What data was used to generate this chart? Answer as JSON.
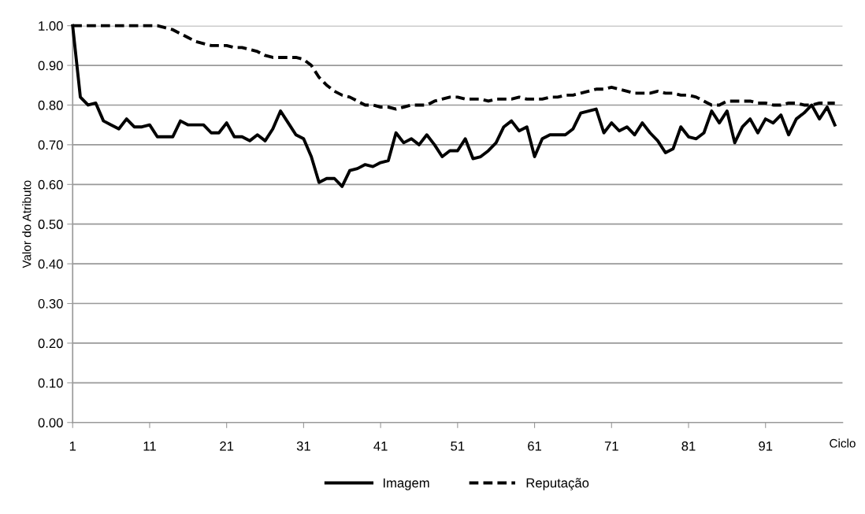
{
  "chart_data": {
    "type": "line",
    "xlabel": "Ciclo",
    "ylabel": "Valor do Atributo",
    "x": [
      1,
      2,
      3,
      4,
      5,
      6,
      7,
      8,
      9,
      10,
      11,
      12,
      13,
      14,
      15,
      16,
      17,
      18,
      19,
      20,
      21,
      22,
      23,
      24,
      25,
      26,
      27,
      28,
      29,
      30,
      31,
      32,
      33,
      34,
      35,
      36,
      37,
      38,
      39,
      40,
      41,
      42,
      43,
      44,
      45,
      46,
      47,
      48,
      49,
      50,
      51,
      52,
      53,
      54,
      55,
      56,
      57,
      58,
      59,
      60,
      61,
      62,
      63,
      64,
      65,
      66,
      67,
      68,
      69,
      70,
      71,
      72,
      73,
      74,
      75,
      76,
      77,
      78,
      79,
      80,
      81,
      82,
      83,
      84,
      85,
      86,
      87,
      88,
      89,
      90,
      91,
      92,
      93,
      94,
      95,
      96,
      97,
      98,
      99,
      100
    ],
    "series": [
      {
        "name": "Imagem",
        "color": "#000000",
        "line_style": "solid",
        "values": [
          1.0,
          0.82,
          0.8,
          0.805,
          0.76,
          0.75,
          0.74,
          0.765,
          0.745,
          0.745,
          0.75,
          0.72,
          0.72,
          0.72,
          0.76,
          0.75,
          0.75,
          0.75,
          0.73,
          0.73,
          0.755,
          0.72,
          0.72,
          0.71,
          0.725,
          0.71,
          0.74,
          0.785,
          0.755,
          0.725,
          0.715,
          0.67,
          0.605,
          0.615,
          0.615,
          0.595,
          0.635,
          0.64,
          0.65,
          0.645,
          0.655,
          0.66,
          0.73,
          0.705,
          0.715,
          0.7,
          0.725,
          0.7,
          0.67,
          0.685,
          0.685,
          0.715,
          0.665,
          0.67,
          0.685,
          0.705,
          0.745,
          0.76,
          0.735,
          0.745,
          0.67,
          0.715,
          0.725,
          0.725,
          0.725,
          0.74,
          0.78,
          0.785,
          0.79,
          0.73,
          0.755,
          0.735,
          0.745,
          0.725,
          0.755,
          0.73,
          0.71,
          0.68,
          0.69,
          0.745,
          0.72,
          0.715,
          0.73,
          0.785,
          0.755,
          0.785,
          0.705,
          0.745,
          0.765,
          0.73,
          0.765,
          0.755,
          0.775,
          0.725,
          0.765,
          0.78,
          0.8,
          0.765,
          0.795,
          0.75
        ]
      },
      {
        "name": "Reputação",
        "color": "#000000",
        "line_style": "dashed",
        "values": [
          1.0,
          1.0,
          1.0,
          1.0,
          1.0,
          1.0,
          1.0,
          1.0,
          1.0,
          1.0,
          1.0,
          1.0,
          0.995,
          0.99,
          0.98,
          0.97,
          0.96,
          0.955,
          0.95,
          0.95,
          0.95,
          0.945,
          0.945,
          0.94,
          0.935,
          0.925,
          0.92,
          0.92,
          0.92,
          0.92,
          0.915,
          0.9,
          0.87,
          0.85,
          0.835,
          0.825,
          0.82,
          0.81,
          0.8,
          0.8,
          0.795,
          0.795,
          0.79,
          0.795,
          0.8,
          0.8,
          0.8,
          0.81,
          0.815,
          0.82,
          0.82,
          0.815,
          0.815,
          0.815,
          0.81,
          0.815,
          0.815,
          0.815,
          0.82,
          0.815,
          0.815,
          0.815,
          0.82,
          0.82,
          0.825,
          0.825,
          0.83,
          0.835,
          0.84,
          0.84,
          0.845,
          0.84,
          0.835,
          0.83,
          0.83,
          0.83,
          0.835,
          0.83,
          0.83,
          0.825,
          0.825,
          0.82,
          0.81,
          0.8,
          0.8,
          0.81,
          0.81,
          0.81,
          0.81,
          0.805,
          0.805,
          0.8,
          0.8,
          0.805,
          0.805,
          0.8,
          0.8,
          0.805,
          0.805,
          0.805
        ]
      }
    ],
    "xlim": [
      1,
      101
    ],
    "xticks": [
      1,
      11,
      21,
      31,
      41,
      51,
      61,
      71,
      81,
      91
    ],
    "ylim": [
      0,
      1
    ],
    "yticks": [
      {
        "value": 0,
        "label": "0.00"
      },
      {
        "value": 0.1,
        "label": "0.10"
      },
      {
        "value": 0.2,
        "label": "0.20"
      },
      {
        "value": 0.3,
        "label": "0.30"
      },
      {
        "value": 0.4,
        "label": "0.40"
      },
      {
        "value": 0.5,
        "label": "0.50"
      },
      {
        "value": 0.6,
        "label": "0.60"
      },
      {
        "value": 0.7,
        "label": "0.70"
      },
      {
        "value": 0.8,
        "label": "0.80"
      },
      {
        "value": 0.9,
        "label": "0.90"
      },
      {
        "value": 1.0,
        "label": "1.00"
      }
    ],
    "grid": "y",
    "legend": "bottom",
    "marker": "none"
  }
}
